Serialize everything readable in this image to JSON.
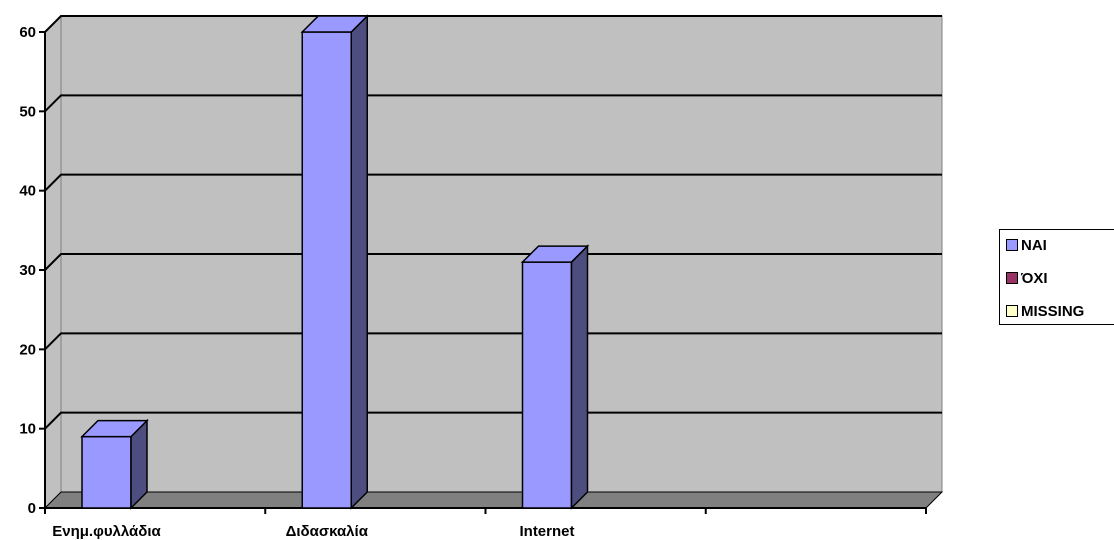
{
  "chart_data": {
    "type": "bar",
    "categories": [
      "Ενημ.φυλλάδια",
      "Διδασκαλία",
      "Internet",
      ""
    ],
    "series": [
      {
        "name": "ΝΑΙ",
        "values": [
          9,
          60,
          31,
          0
        ],
        "color": "#9999ff",
        "side_color": "#4d4d80"
      },
      {
        "name": "ΌΧΙ",
        "values": [
          0,
          0,
          0,
          0
        ],
        "color": "#993366",
        "side_color": "#4d1a33"
      },
      {
        "name": "MISSING",
        "values": [
          0,
          0,
          0,
          0
        ],
        "color": "#ffffcc",
        "side_color": "#808066"
      }
    ],
    "yticks": [
      "0",
      "10",
      "20",
      "30",
      "40",
      "50",
      "60"
    ],
    "ylim": [
      0,
      60
    ],
    "grid": true,
    "plot_color": "#c0c0c0",
    "floor_color": "#808080",
    "legend_position": "right"
  }
}
